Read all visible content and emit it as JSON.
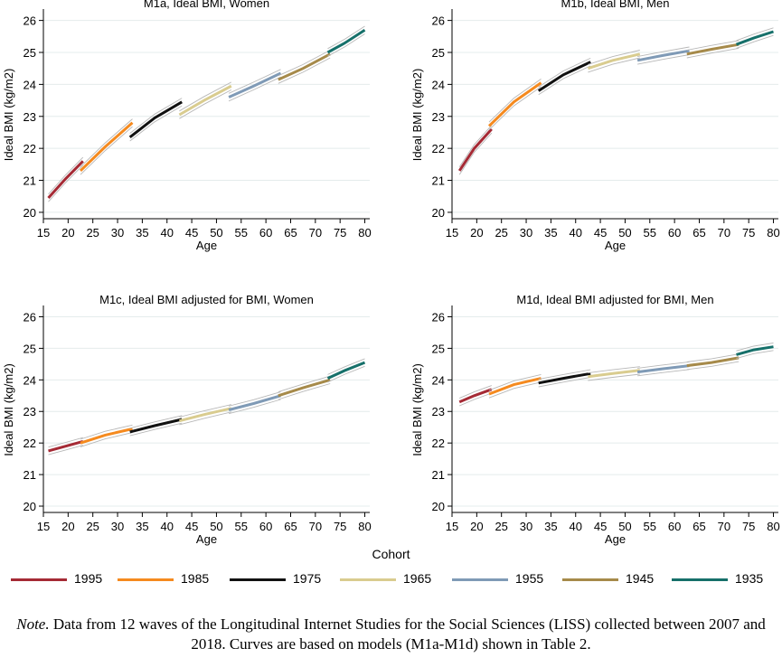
{
  "chart_data": [
    {
      "type": "line",
      "title": "M1a, Ideal BMI, Women",
      "xlabel": "Age",
      "ylabel": "Ideal BMI (kg/m2)",
      "xlim": [
        15,
        81
      ],
      "ylim": [
        19.8,
        26.3
      ],
      "xticks": [
        15,
        20,
        25,
        30,
        35,
        40,
        45,
        50,
        55,
        60,
        65,
        70,
        75,
        80
      ],
      "yticks": [
        20,
        21,
        22,
        23,
        24,
        25,
        26
      ],
      "series": [
        {
          "name": "1995",
          "x": [
            16,
            19.5,
            23
          ],
          "y": [
            20.45,
            21.05,
            21.6
          ]
        },
        {
          "name": "1985",
          "x": [
            22.5,
            27.5,
            33
          ],
          "y": [
            21.3,
            22.05,
            22.8
          ]
        },
        {
          "name": "1975",
          "x": [
            32.5,
            37.5,
            43
          ],
          "y": [
            22.35,
            22.95,
            23.45
          ]
        },
        {
          "name": "1965",
          "x": [
            42.5,
            47.5,
            53
          ],
          "y": [
            23.05,
            23.5,
            23.95
          ]
        },
        {
          "name": "1955",
          "x": [
            52.5,
            57.5,
            63
          ],
          "y": [
            23.6,
            23.95,
            24.35
          ]
        },
        {
          "name": "1945",
          "x": [
            62.5,
            67.5,
            73
          ],
          "y": [
            24.15,
            24.5,
            24.95
          ]
        },
        {
          "name": "1935",
          "x": [
            72.5,
            76,
            80
          ],
          "y": [
            25.0,
            25.3,
            25.7
          ]
        }
      ]
    },
    {
      "type": "line",
      "title": "M1b, Ideal BMI, Men",
      "xlabel": "Age",
      "ylabel": "Ideal BMI (kg/m2)",
      "xlim": [
        15,
        81
      ],
      "ylim": [
        19.8,
        26.3
      ],
      "xticks": [
        15,
        20,
        25,
        30,
        35,
        40,
        45,
        50,
        55,
        60,
        65,
        70,
        75,
        80
      ],
      "yticks": [
        20,
        21,
        22,
        23,
        24,
        25,
        26
      ],
      "series": [
        {
          "name": "1995",
          "x": [
            16.5,
            19.5,
            23
          ],
          "y": [
            21.3,
            22.0,
            22.6
          ]
        },
        {
          "name": "1985",
          "x": [
            22.5,
            27.5,
            33
          ],
          "y": [
            22.7,
            23.45,
            24.05
          ]
        },
        {
          "name": "1975",
          "x": [
            32.5,
            37.5,
            43
          ],
          "y": [
            23.8,
            24.3,
            24.7
          ]
        },
        {
          "name": "1965",
          "x": [
            42.5,
            47.5,
            53
          ],
          "y": [
            24.5,
            24.75,
            24.95
          ]
        },
        {
          "name": "1955",
          "x": [
            52.5,
            57.5,
            63
          ],
          "y": [
            24.75,
            24.9,
            25.05
          ]
        },
        {
          "name": "1945",
          "x": [
            62.5,
            67.5,
            73
          ],
          "y": [
            24.95,
            25.1,
            25.25
          ]
        },
        {
          "name": "1935",
          "x": [
            72.5,
            76,
            80
          ],
          "y": [
            25.25,
            25.45,
            25.65
          ]
        }
      ]
    },
    {
      "type": "line",
      "title": "M1c, Ideal BMI adjusted for BMI, Women",
      "xlabel": "Age",
      "ylabel": "Ideal BMI (kg/m2)",
      "xlim": [
        15,
        81
      ],
      "ylim": [
        19.8,
        26.3
      ],
      "xticks": [
        15,
        20,
        25,
        30,
        35,
        40,
        45,
        50,
        55,
        60,
        65,
        70,
        75,
        80
      ],
      "yticks": [
        20,
        21,
        22,
        23,
        24,
        25,
        26
      ],
      "series": [
        {
          "name": "1995",
          "x": [
            16,
            19.5,
            23
          ],
          "y": [
            21.75,
            21.9,
            22.05
          ]
        },
        {
          "name": "1985",
          "x": [
            22.5,
            27.5,
            33
          ],
          "y": [
            22.0,
            22.25,
            22.45
          ]
        },
        {
          "name": "1975",
          "x": [
            32.5,
            37.5,
            43
          ],
          "y": [
            22.35,
            22.55,
            22.75
          ]
        },
        {
          "name": "1965",
          "x": [
            42.5,
            47.5,
            53
          ],
          "y": [
            22.7,
            22.9,
            23.1
          ]
        },
        {
          "name": "1955",
          "x": [
            52.5,
            57.5,
            63
          ],
          "y": [
            23.05,
            23.25,
            23.5
          ]
        },
        {
          "name": "1945",
          "x": [
            62.5,
            67.5,
            73
          ],
          "y": [
            23.5,
            23.75,
            24.0
          ]
        },
        {
          "name": "1935",
          "x": [
            72.5,
            76,
            80
          ],
          "y": [
            24.05,
            24.3,
            24.55
          ]
        }
      ]
    },
    {
      "type": "line",
      "title": "M1d, Ideal BMI adjusted for BMI, Men",
      "xlabel": "Age",
      "ylabel": "Ideal BMI (kg/m2)",
      "xlim": [
        15,
        81
      ],
      "ylim": [
        19.8,
        26.3
      ],
      "xticks": [
        15,
        20,
        25,
        30,
        35,
        40,
        45,
        50,
        55,
        60,
        65,
        70,
        75,
        80
      ],
      "yticks": [
        20,
        21,
        22,
        23,
        24,
        25,
        26
      ],
      "series": [
        {
          "name": "1995",
          "x": [
            16.5,
            19.5,
            23
          ],
          "y": [
            23.3,
            23.5,
            23.7
          ]
        },
        {
          "name": "1985",
          "x": [
            22.5,
            27.5,
            33
          ],
          "y": [
            23.55,
            23.85,
            24.05
          ]
        },
        {
          "name": "1975",
          "x": [
            32.5,
            37.5,
            43
          ],
          "y": [
            23.9,
            24.05,
            24.2
          ]
        },
        {
          "name": "1965",
          "x": [
            42.5,
            47.5,
            53
          ],
          "y": [
            24.1,
            24.2,
            24.3
          ]
        },
        {
          "name": "1955",
          "x": [
            52.5,
            57.5,
            63
          ],
          "y": [
            24.25,
            24.35,
            24.45
          ]
        },
        {
          "name": "1945",
          "x": [
            62.5,
            67.5,
            73
          ],
          "y": [
            24.45,
            24.55,
            24.7
          ]
        },
        {
          "name": "1935",
          "x": [
            72.5,
            76,
            80
          ],
          "y": [
            24.8,
            24.95,
            25.05
          ]
        }
      ]
    }
  ],
  "legend": {
    "title": "Cohort",
    "items": [
      {
        "label": "1995",
        "color": "#A52A35"
      },
      {
        "label": "1985",
        "color": "#F58A1F"
      },
      {
        "label": "1975",
        "color": "#111111"
      },
      {
        "label": "1965",
        "color": "#D9CC8F"
      },
      {
        "label": "1955",
        "color": "#7F9AB6"
      },
      {
        "label": "1945",
        "color": "#A68A4A"
      },
      {
        "label": "1935",
        "color": "#16706A"
      }
    ]
  },
  "note": {
    "label": "Note.",
    "text": "Data from 12 waves of the Longitudinal Internet Studies for the Social Sciences (LISS) collected between 2007 and 2018. Curves are based on models (M1a-M1d) shown in Table 2."
  }
}
